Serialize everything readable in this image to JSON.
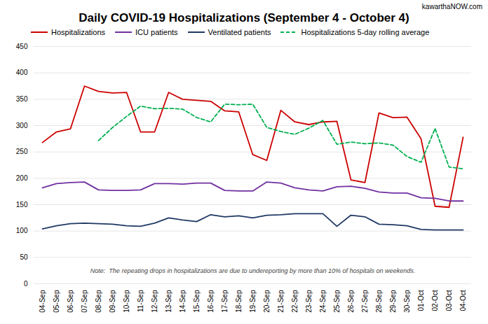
{
  "chart_data": {
    "type": "line",
    "title": "Daily COVID-19 Hospitalizations (September 4 - October 4)",
    "annotations": [
      "Note:  The repeating drops in hospitalizations are due to undereporting by more than 10% of hospitals on weekends.",
      "kawarthaNOW.com"
    ],
    "categories": [
      "04-Sep",
      "05-Sep",
      "06-Sep",
      "07-Sep",
      "08-Sep",
      "09-Sep",
      "10-Sep",
      "11-Sep",
      "12-Sep",
      "13-Sep",
      "14-Sep",
      "15-Sep",
      "16-Sep",
      "17-Sep",
      "18-Sep",
      "19-Sep",
      "20-Sep",
      "21-Sep",
      "22-Sep",
      "23-Sep",
      "24-Sep",
      "25-Sep",
      "26-Sep",
      "27-Sep",
      "28-Sep",
      "29-Sep",
      "30-Sep",
      "01-Oct",
      "02-Oct",
      "03-Oct",
      "04-Oct"
    ],
    "series": [
      {
        "name": "Hospitalizations",
        "color": "#cc0000",
        "line_style": "solid",
        "values": [
          268,
          288,
          294,
          375,
          365,
          362,
          363,
          288,
          288,
          363,
          350,
          348,
          346,
          328,
          326,
          245,
          234,
          329,
          307,
          302,
          307,
          308,
          197,
          192,
          324,
          315,
          316,
          275,
          147,
          145,
          278
        ]
      },
      {
        "name": "ICU patients",
        "color": "#7030a0",
        "line_style": "solid",
        "values": [
          182,
          190,
          192,
          193,
          178,
          177,
          177,
          178,
          190,
          190,
          189,
          191,
          191,
          177,
          176,
          176,
          193,
          191,
          182,
          178,
          176,
          184,
          185,
          181,
          174,
          172,
          172,
          163,
          162,
          157,
          157
        ]
      },
      {
        "name": "Ventilated patients",
        "color": "#1f3864",
        "line_style": "solid",
        "values": [
          104,
          110,
          114,
          115,
          114,
          113,
          110,
          109,
          115,
          125,
          121,
          118,
          131,
          127,
          129,
          125,
          130,
          131,
          133,
          133,
          133,
          109,
          130,
          127,
          113,
          112,
          110,
          103,
          102,
          102,
          102
        ]
      },
      {
        "name": "Hospitalizations 5-day rolling average",
        "color": "#00b050",
        "line_style": "dashed",
        "values": [
          null,
          null,
          null,
          null,
          271.6,
          296.4,
          317.4,
          337.0,
          332.0,
          332.8,
          331.2,
          315.4,
          307.0,
          340.8,
          339.6,
          340.6,
          296.6,
          288.8,
          283.4,
          295.2,
          309.8,
          264.6,
          268.8,
          265.6,
          267.2,
          263.0,
          241.4,
          230.4,
          294.6,
          221.4,
          218.0
        ]
      }
    ],
    "ylim": [
      0,
      450
    ],
    "yticks": [
      0,
      50,
      100,
      150,
      200,
      250,
      300,
      350,
      400,
      450
    ],
    "grid": true,
    "legend": "top-left"
  }
}
